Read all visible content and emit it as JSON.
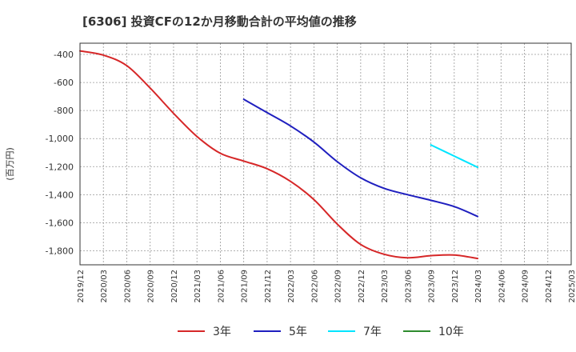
{
  "chart_data": {
    "type": "line",
    "title": "[6306]  投資CFの12か月移動合計の平均値の推移",
    "ylabel": "(百万円)",
    "xlabel": "",
    "ylim": [
      -1900,
      -320
    ],
    "yticks": [
      -400,
      -600,
      -800,
      -1000,
      -1200,
      -1400,
      -1600,
      -1800
    ],
    "ytick_labels": [
      "-400",
      "-600",
      "-800",
      "-1,000",
      "-1,200",
      "-1,400",
      "-1,600",
      "-1,800"
    ],
    "x_ticks": [
      "2019/12",
      "2020/03",
      "2020/06",
      "2020/09",
      "2020/12",
      "2021/03",
      "2021/06",
      "2021/09",
      "2021/12",
      "2022/03",
      "2022/06",
      "2022/09",
      "2022/12",
      "2023/03",
      "2023/06",
      "2023/09",
      "2023/12",
      "2024/03",
      "2024/06",
      "2024/09",
      "2024/12",
      "2025/03"
    ],
    "grid": true,
    "legend_position": "bottom",
    "series": [
      {
        "name": "3年",
        "color": "#d62728",
        "x": [
          "2019/12",
          "2020/03",
          "2020/06",
          "2020/09",
          "2020/12",
          "2021/03",
          "2021/06",
          "2021/09",
          "2021/12",
          "2022/03",
          "2022/06",
          "2022/09",
          "2022/12",
          "2023/03",
          "2023/06",
          "2023/09",
          "2023/12",
          "2024/03"
        ],
        "values": [
          -375,
          -405,
          -480,
          -640,
          -820,
          -985,
          -1105,
          -1160,
          -1215,
          -1305,
          -1435,
          -1610,
          -1755,
          -1825,
          -1850,
          -1835,
          -1830,
          -1855
        ]
      },
      {
        "name": "5年",
        "color": "#1f1fbf",
        "x": [
          "2021/09",
          "2021/12",
          "2022/03",
          "2022/06",
          "2022/09",
          "2022/12",
          "2023/03",
          "2023/06",
          "2023/09",
          "2023/12",
          "2024/03"
        ],
        "values": [
          -720,
          -815,
          -910,
          -1025,
          -1165,
          -1280,
          -1355,
          -1400,
          -1440,
          -1485,
          -1555
        ]
      },
      {
        "name": "7年",
        "color": "#00e5ff",
        "x": [
          "2023/09",
          "2023/12",
          "2024/03"
        ],
        "values": [
          -1045,
          -1125,
          -1205
        ]
      },
      {
        "name": "10年",
        "color": "#2e8b2e",
        "x": [],
        "values": []
      }
    ]
  }
}
